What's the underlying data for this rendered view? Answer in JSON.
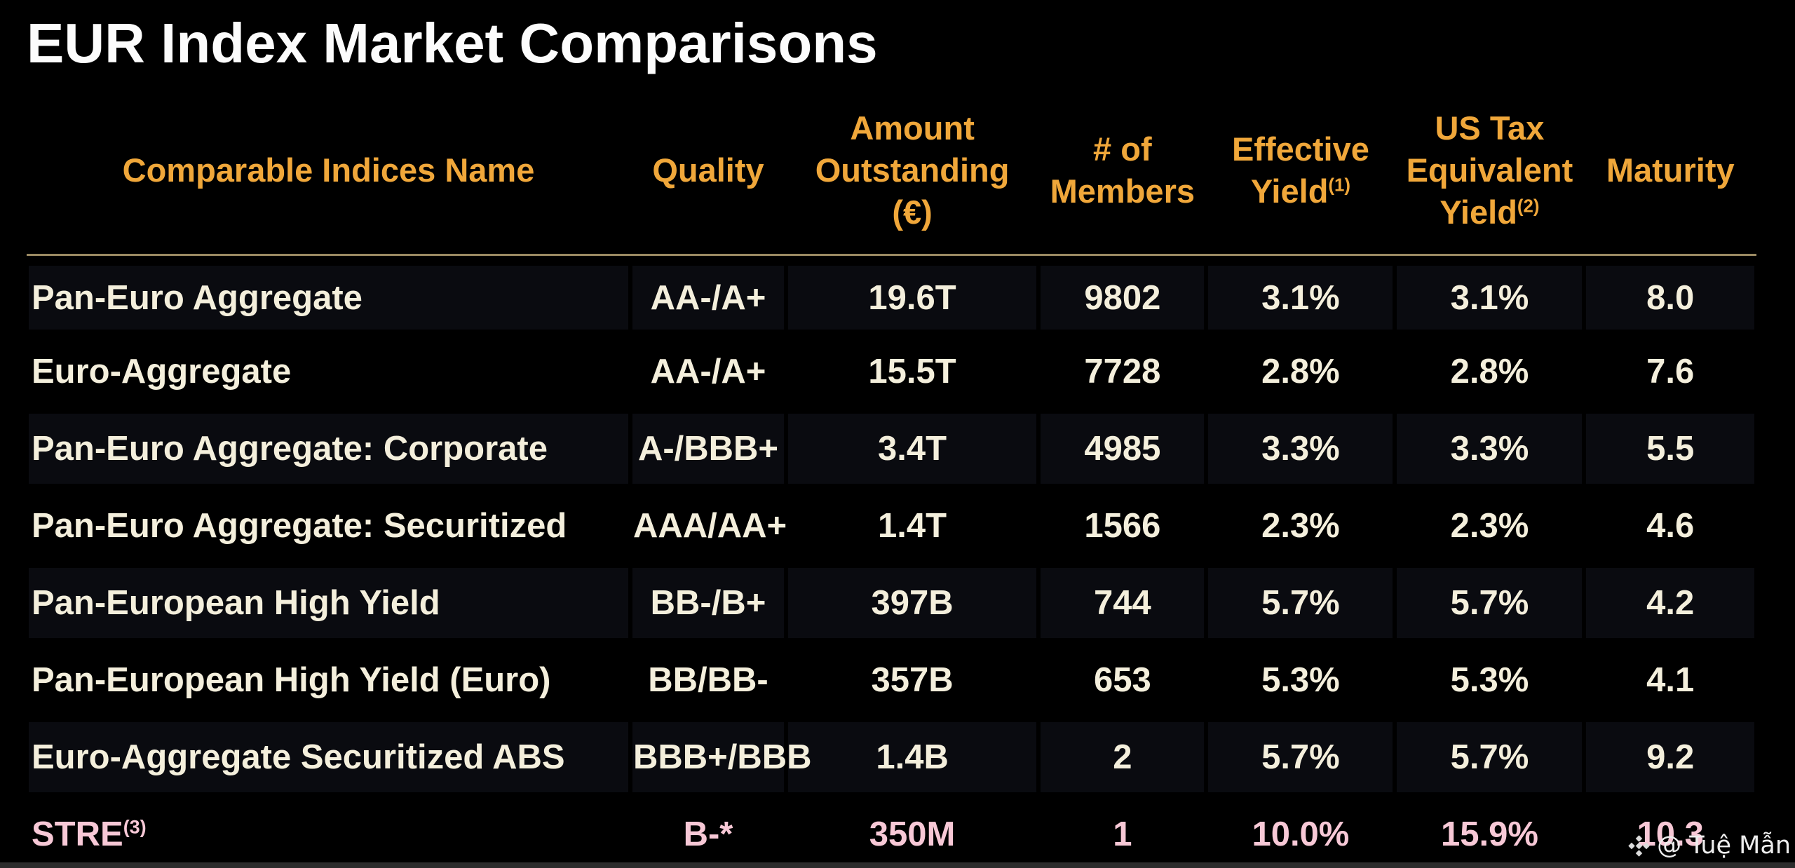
{
  "title": "EUR Index Market Comparisons",
  "chart_data": {
    "type": "table",
    "title": "EUR Index Market Comparisons",
    "columns": [
      {
        "key": "name",
        "label": "Comparable Indices Name"
      },
      {
        "key": "quality",
        "label": "Quality"
      },
      {
        "key": "amount_outstanding",
        "label": "Amount\nOutstanding\n(€)"
      },
      {
        "key": "members",
        "label": "# of\nMembers"
      },
      {
        "key": "effective_yield",
        "label": "Effective\nYield",
        "sup": "(1)"
      },
      {
        "key": "us_tax_equivalent_yield",
        "label": "US Tax\nEquivalent\nYield",
        "sup": "(2)"
      },
      {
        "key": "maturity",
        "label": "Maturity"
      }
    ],
    "rows": [
      {
        "cells": [
          "Pan-Euro Aggregate",
          "AA-/A+",
          "19.6T",
          "9802",
          "3.1%",
          "3.1%",
          "8.0"
        ],
        "striped": true
      },
      {
        "cells": [
          "Euro-Aggregate",
          "AA-/A+",
          "15.5T",
          "7728",
          "2.8%",
          "2.8%",
          "7.6"
        ],
        "striped": false
      },
      {
        "cells": [
          "Pan-Euro Aggregate: Corporate",
          "A-/BBB+",
          "3.4T",
          "4985",
          "3.3%",
          "3.3%",
          "5.5"
        ],
        "striped": true
      },
      {
        "cells": [
          "Pan-Euro Aggregate: Securitized",
          "AAA/AA+",
          "1.4T",
          "1566",
          "2.3%",
          "2.3%",
          "4.6"
        ],
        "striped": false
      },
      {
        "cells": [
          "Pan-European High Yield",
          "BB-/B+",
          "397B",
          "744",
          "5.7%",
          "5.7%",
          "4.2"
        ],
        "striped": true
      },
      {
        "cells": [
          "Pan-European High Yield (Euro)",
          "BB/BB-",
          "357B",
          "653",
          "5.3%",
          "5.3%",
          "4.1"
        ],
        "striped": false
      },
      {
        "cells": [
          "Euro-Aggregate Securitized ABS",
          "BBB+/BBB",
          "1.4B",
          "2",
          "5.7%",
          "5.7%",
          "9.2"
        ],
        "striped": true
      },
      {
        "cells": [
          "STRE",
          "B-*",
          "350M",
          "1",
          "10.0%",
          "15.9%",
          "10.3"
        ],
        "striped": false,
        "highlight": true,
        "name_sup": "(3)"
      }
    ]
  },
  "watermark": {
    "icon": "binance-diamond-icon",
    "text": "@ Tuệ Mẫn"
  },
  "colors": {
    "background": "#000000",
    "title_text": "#FCFCFC",
    "header_text": "#F0A73A",
    "body_text": "#F4EFDC",
    "highlight_text": "#F7C8D6",
    "stripe_bg": "#0A0B10",
    "divider": "#9B8A63",
    "watermark_text": "#EDEDED"
  }
}
